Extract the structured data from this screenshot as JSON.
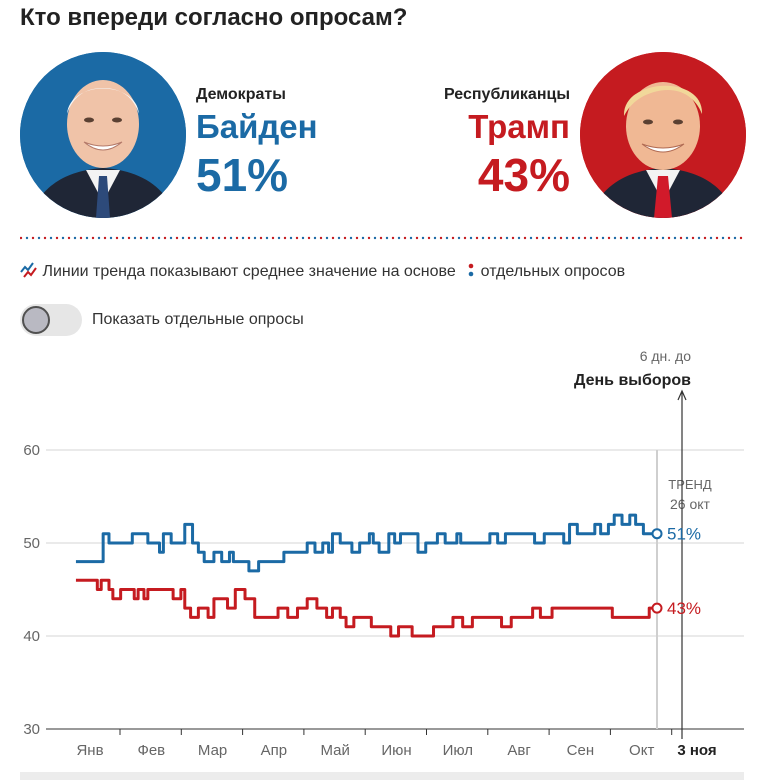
{
  "header": {
    "title": "Кто впереди согласно опросам?"
  },
  "candidates": {
    "dem": {
      "party": "Демократы",
      "name": "Байден",
      "pct": "51%",
      "color": "#1b6aa5"
    },
    "rep": {
      "party": "Республиканцы",
      "name": "Трамп",
      "pct": "43%",
      "color": "#c51b20"
    }
  },
  "legend": {
    "trend_text": "Линии тренда показывают среднее значение на основе",
    "polls_text": "отдельных опросов"
  },
  "toggle": {
    "label": "Показать отдельные опросы",
    "on": false
  },
  "chart_data": {
    "type": "line",
    "y_ticks": [
      30,
      40,
      50,
      60
    ],
    "ylim": [
      30,
      60
    ],
    "x_ticks": [
      "Янв",
      "Фев",
      "Мар",
      "Апр",
      "Май",
      "Июн",
      "Июл",
      "Авг",
      "Сен",
      "Окт",
      "3 ноя"
    ],
    "grid": true,
    "trend_label": "ТРЕНД",
    "trend_date": "26 окт",
    "election_note": "6 дн. до",
    "election_label": "День выборов",
    "series": [
      {
        "name": "Демократы",
        "color": "#1b6aa5",
        "end_label": "51%",
        "x": [
          1,
          13,
          15,
          18,
          21,
          30,
          38,
          44,
          46,
          50,
          57,
          61,
          64,
          67,
          72,
          76,
          80,
          82,
          86,
          90,
          95,
          103,
          108,
          110,
          116,
          120,
          124,
          128,
          131,
          133,
          137,
          143,
          147,
          152,
          154,
          157,
          162,
          165,
          168,
          171,
          177,
          181,
          187,
          191,
          197,
          199,
          205,
          208,
          214,
          218,
          222,
          228,
          233,
          237,
          242,
          245,
          250,
          252,
          255,
          259,
          262,
          265,
          268,
          271,
          275,
          278,
          282,
          286,
          289,
          293,
          297,
          300
        ],
        "y": [
          48,
          48,
          51,
          50,
          50,
          51,
          50,
          49,
          51,
          50,
          52,
          50,
          49,
          48,
          49,
          48,
          49,
          48,
          48,
          47,
          48,
          48,
          49,
          49,
          49,
          50,
          49,
          50,
          49,
          51,
          50,
          49,
          50,
          51,
          50,
          49,
          51,
          50,
          51,
          51,
          49,
          50,
          51,
          50,
          51,
          50,
          50,
          50,
          51,
          50,
          51,
          51,
          51,
          50,
          51,
          51,
          51,
          50,
          52,
          51,
          51,
          51,
          52,
          51,
          52,
          53,
          52,
          53,
          52,
          51,
          51,
          51
        ]
      },
      {
        "name": "Республиканцы",
        "color": "#c51b20",
        "end_label": "43%",
        "x": [
          1,
          10,
          12,
          14,
          18,
          20,
          24,
          28,
          31,
          33,
          36,
          38,
          42,
          46,
          51,
          55,
          57,
          60,
          64,
          66,
          69,
          72,
          76,
          79,
          83,
          88,
          93,
          100,
          105,
          110,
          115,
          120,
          125,
          130,
          133,
          137,
          140,
          144,
          148,
          153,
          157,
          163,
          167,
          170,
          174,
          179,
          185,
          190,
          195,
          200,
          205,
          210,
          215,
          220,
          225,
          228,
          231,
          236,
          240,
          246,
          252,
          258,
          262,
          267,
          272,
          277,
          282,
          287,
          291,
          296,
          300
        ],
        "y": [
          46,
          46,
          45,
          46,
          45,
          44,
          45,
          45,
          44,
          45,
          44,
          45,
          45,
          45,
          44,
          45,
          43,
          42,
          43,
          43,
          42,
          44,
          44,
          43,
          45,
          44,
          42,
          42,
          43,
          42,
          43,
          44,
          43,
          42,
          43,
          42,
          41,
          42,
          42,
          41,
          41,
          40,
          41,
          41,
          40,
          40,
          41,
          41,
          42,
          41,
          42,
          42,
          42,
          41,
          42,
          42,
          42,
          43,
          42,
          43,
          43,
          43,
          43,
          43,
          43,
          42,
          42,
          42,
          42,
          43,
          43
        ]
      }
    ]
  }
}
